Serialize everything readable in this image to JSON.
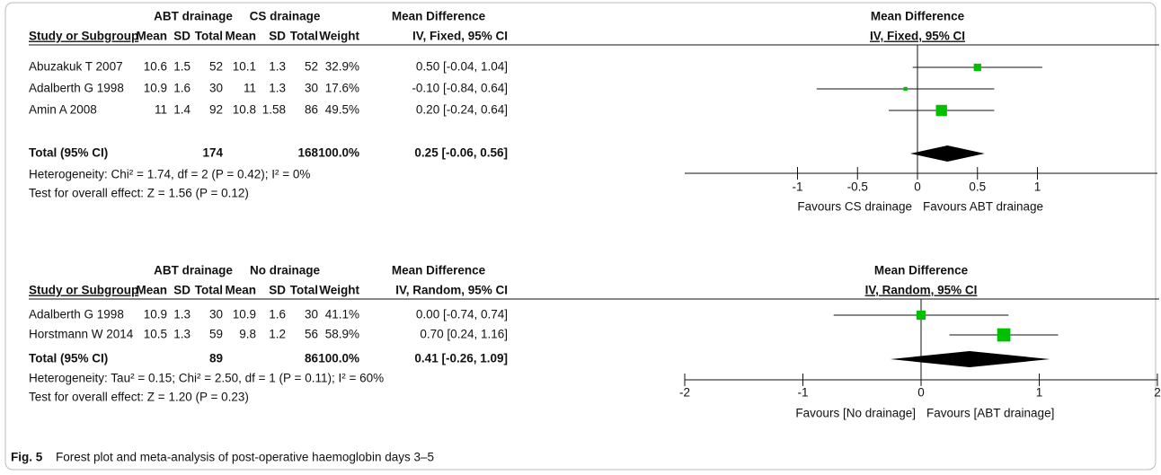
{
  "caption": {
    "label": "Fig. 5",
    "text": "Forest plot and meta-analysis of post-operative haemoglobin days 3–5"
  },
  "panels": [
    {
      "group_headers": [
        "ABT drainage",
        "CS drainage",
        "Mean Difference"
      ],
      "columns": [
        "Study or Subgroup",
        "Mean",
        "SD",
        "Total",
        "Mean",
        "SD",
        "Total",
        "Weight",
        "IV, Fixed, 95% CI"
      ],
      "rows": [
        [
          "Abuzakuk T 2007",
          "10.6",
          "1.5",
          "52",
          "10.1",
          "1.3",
          "52",
          "32.9%",
          "0.50 [-0.04, 1.04]"
        ],
        [
          "Adalberth G 1998",
          "10.9",
          "1.6",
          "30",
          "11",
          "1.3",
          "30",
          "17.6%",
          "-0.10 [-0.84, 0.64]"
        ],
        [
          "Amin A 2008",
          "11",
          "1.4",
          "92",
          "10.8",
          "1.58",
          "86",
          "49.5%",
          "0.20 [-0.24, 0.64]"
        ]
      ],
      "total": {
        "label": "Total (95% CI)",
        "total_1": "174",
        "total_2": "168",
        "weight": "100.0%",
        "ci": "0.25 [-0.06, 0.56]"
      },
      "heterogeneity": "Heterogeneity: Chi² = 1.74, df = 2 (P = 0.42); I² = 0%",
      "overall": "Test for overall effect: Z = 1.56 (P = 0.12)",
      "plot": {
        "title": "Mean Difference",
        "subtitle": "IV, Fixed, 95% CI",
        "xlim": [
          -1.94,
          2
        ],
        "xticks": [
          -1,
          -0.5,
          0,
          0.5,
          1
        ],
        "favours": [
          "Favours CS drainage",
          "Favours ABT drainage"
        ],
        "studies": [
          {
            "md": 0.5,
            "lo": -0.04,
            "hi": 1.04,
            "weight": 32.9
          },
          {
            "md": -0.1,
            "lo": -0.84,
            "hi": 0.64,
            "weight": 17.6
          },
          {
            "md": 0.2,
            "lo": -0.24,
            "hi": 0.64,
            "weight": 49.5
          }
        ],
        "total": {
          "md": 0.25,
          "lo": -0.06,
          "hi": 0.56
        }
      }
    },
    {
      "group_headers": [
        "ABT drainage",
        "No drainage",
        "Mean Difference"
      ],
      "columns": [
        "Study or Subgroup",
        "Mean",
        "SD",
        "Total",
        "Mean",
        "SD",
        "Total",
        "Weight",
        "IV, Random, 95% CI"
      ],
      "rows": [
        [
          "Adalberth G 1998",
          "10.9",
          "1.3",
          "30",
          "10.9",
          "1.6",
          "30",
          "41.1%",
          "0.00 [-0.74, 0.74]"
        ],
        [
          "Horstmann W 2014",
          "10.5",
          "1.3",
          "59",
          "9.8",
          "1.2",
          "56",
          "58.9%",
          "0.70 [0.24, 1.16]"
        ]
      ],
      "total": {
        "label": "Total (95% CI)",
        "total_1": "89",
        "total_2": "86",
        "weight": "100.0%",
        "ci": "0.41 [-0.26, 1.09]"
      },
      "heterogeneity": "Heterogeneity: Tau² = 0.15; Chi² = 2.50, df = 1 (P = 0.11); I² = 60%",
      "overall": "Test for overall effect: Z = 1.20 (P = 0.23)",
      "plot": {
        "title": "Mean Difference",
        "subtitle": "IV, Random, 95% CI",
        "xlim": [
          -2,
          2
        ],
        "xticks": [
          -2,
          -1,
          0,
          1,
          2
        ],
        "favours": [
          "Favours [No drainage]",
          "Favours [ABT drainage]"
        ],
        "studies": [
          {
            "md": 0,
            "lo": -0.74,
            "hi": 0.74,
            "weight": 41.1
          },
          {
            "md": 0.7,
            "lo": 0.24,
            "hi": 1.16,
            "weight": 58.9
          }
        ],
        "total": {
          "md": 0.41,
          "lo": -0.26,
          "hi": 1.09
        }
      }
    }
  ]
}
